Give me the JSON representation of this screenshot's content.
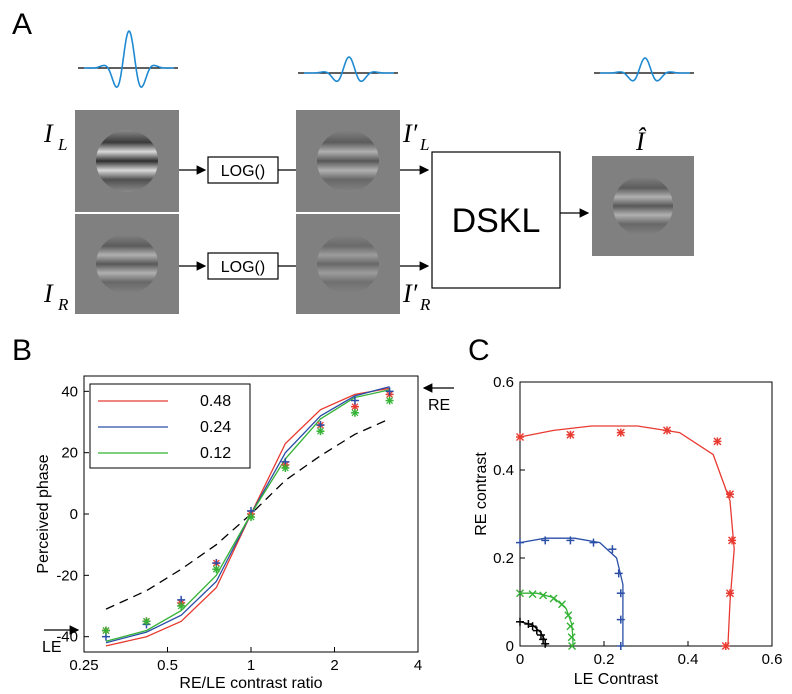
{
  "panelA": {
    "letter": "A",
    "label_IL": "I",
    "sub_L": "L",
    "label_IR": "I",
    "sub_R": "R",
    "label_ILp": "I′",
    "label_IRp": "I′",
    "label_Ihat": "Î",
    "log_left": "LOG()",
    "log_right": "LOG()",
    "dskl": "DSKL",
    "colors": {
      "wave": "#1f8ad2",
      "image_bg": "#808080"
    }
  },
  "chart_data": [
    {
      "panel": "B",
      "type": "line",
      "xlabel": "RE/LE contrast ratio",
      "ylabel": "Perceived phase",
      "x_scale": "log",
      "xlim": [
        0.25,
        4
      ],
      "ylim": [
        -45,
        45
      ],
      "xticks": [
        "0.25",
        "0.5",
        "1",
        "2",
        "4"
      ],
      "yticks": [
        "-40",
        "-20",
        "0",
        "20",
        "40"
      ],
      "legend_placement": "top-left",
      "arrow_labels": {
        "le": "LE",
        "re": "RE"
      },
      "x": [
        0.3,
        0.42,
        0.56,
        0.75,
        1.0,
        1.33,
        1.78,
        2.37,
        3.16
      ],
      "series": [
        {
          "name": "0.48",
          "color": "#e83a30",
          "line": [
            -43,
            -40,
            -35,
            -24,
            0,
            23,
            34,
            39,
            41
          ],
          "markers": [
            -38,
            -35,
            -29,
            -16,
            0,
            16,
            29,
            35,
            39
          ]
        },
        {
          "name": "0.24",
          "color": "#2a4ea7",
          "line": [
            -42,
            -38.5,
            -33,
            -22,
            0,
            20,
            32,
            38.5,
            41.5
          ],
          "markers": [
            -40,
            -36,
            -28,
            -16,
            1,
            17,
            29,
            37,
            40
          ]
        },
        {
          "name": "0.12",
          "color": "#35b336",
          "line": [
            -41.5,
            -38,
            -31.5,
            -20,
            0,
            18,
            31,
            38,
            40.5
          ],
          "markers": [
            -38,
            -35,
            -30,
            -18,
            -1,
            15,
            27,
            33,
            37
          ]
        },
        {
          "name": "",
          "color": "#000000",
          "dashed": true,
          "line": [
            -31,
            -25,
            -18,
            -10,
            0,
            11,
            19,
            26,
            31
          ]
        }
      ]
    },
    {
      "panel": "C",
      "type": "scatter",
      "xlabel": "LE Contrast",
      "ylabel": "RE contrast",
      "xlim": [
        0,
        0.6
      ],
      "ylim": [
        0,
        0.6
      ],
      "xticks": [
        "0",
        "0.2",
        "0.4",
        "0.6"
      ],
      "yticks": [
        "0",
        "0.2",
        "0.4",
        "0.6"
      ],
      "series": [
        {
          "color": "#e83a30",
          "marker": "asterisk",
          "points": [
            [
              0,
              0.475
            ],
            [
              0.12,
              0.48
            ],
            [
              0.24,
              0.485
            ],
            [
              0.35,
              0.49
            ],
            [
              0.47,
              0.465
            ],
            [
              0.5,
              0.345
            ],
            [
              0.505,
              0.24
            ],
            [
              0.5,
              0.12
            ],
            [
              0.49,
              0
            ]
          ],
          "curve": [
            [
              0,
              0.475
            ],
            [
              0.08,
              0.49
            ],
            [
              0.17,
              0.5
            ],
            [
              0.28,
              0.5
            ],
            [
              0.38,
              0.485
            ],
            [
              0.46,
              0.435
            ],
            [
              0.5,
              0.33
            ],
            [
              0.51,
              0.22
            ],
            [
              0.5,
              0.1
            ],
            [
              0.495,
              0
            ]
          ]
        },
        {
          "color": "#2a4ea7",
          "marker": "plus",
          "points": [
            [
              0,
              0.235
            ],
            [
              0.06,
              0.24
            ],
            [
              0.12,
              0.24
            ],
            [
              0.175,
              0.235
            ],
            [
              0.22,
              0.22
            ],
            [
              0.235,
              0.165
            ],
            [
              0.24,
              0.12
            ],
            [
              0.24,
              0.06
            ],
            [
              0.24,
              0
            ]
          ],
          "curve": [
            [
              0,
              0.235
            ],
            [
              0.06,
              0.245
            ],
            [
              0.13,
              0.245
            ],
            [
              0.19,
              0.235
            ],
            [
              0.23,
              0.2
            ],
            [
              0.245,
              0.14
            ],
            [
              0.245,
              0.07
            ],
            [
              0.245,
              0
            ]
          ]
        },
        {
          "color": "#35b336",
          "marker": "cross",
          "points": [
            [
              0,
              0.12
            ],
            [
              0.03,
              0.118
            ],
            [
              0.055,
              0.115
            ],
            [
              0.08,
              0.108
            ],
            [
              0.1,
              0.095
            ],
            [
              0.115,
              0.07
            ],
            [
              0.12,
              0.045
            ],
            [
              0.123,
              0.02
            ],
            [
              0.124,
              0
            ]
          ],
          "curve": [
            [
              0,
              0.12
            ],
            [
              0.04,
              0.12
            ],
            [
              0.08,
              0.11
            ],
            [
              0.11,
              0.085
            ],
            [
              0.123,
              0.05
            ],
            [
              0.126,
              0.02
            ],
            [
              0.126,
              0
            ]
          ]
        },
        {
          "color": "#000000",
          "marker": "plus",
          "points": [
            [
              0,
              0.055
            ],
            [
              0.02,
              0.05
            ],
            [
              0.03,
              0.045
            ],
            [
              0.04,
              0.035
            ],
            [
              0.05,
              0.025
            ],
            [
              0.055,
              0.015
            ],
            [
              0.06,
              0.005
            ]
          ],
          "curve": [
            [
              0,
              0.055
            ],
            [
              0.03,
              0.048
            ],
            [
              0.05,
              0.03
            ],
            [
              0.06,
              0.012
            ],
            [
              0.062,
              0
            ]
          ]
        }
      ]
    }
  ],
  "panelB_letter": "B",
  "panelC_letter": "C"
}
